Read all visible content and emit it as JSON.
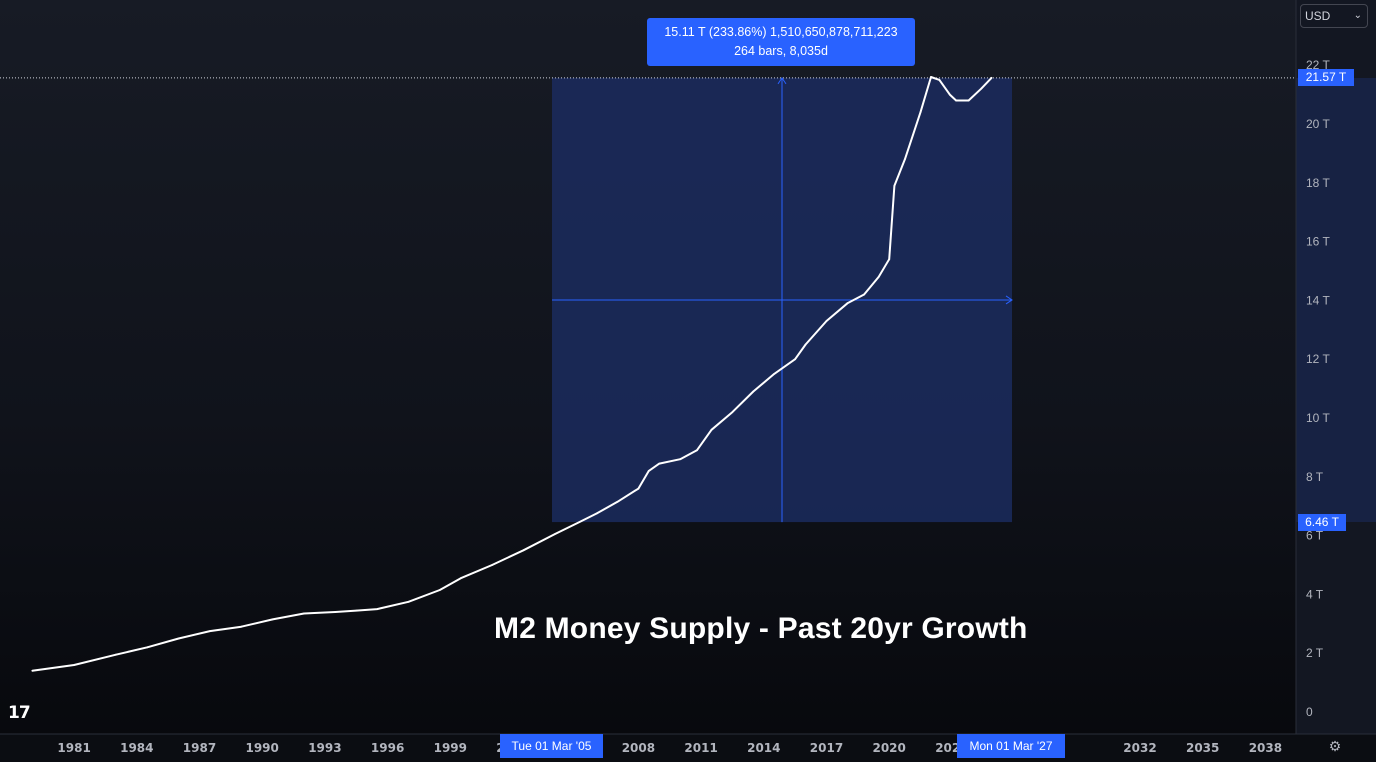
{
  "chart_data": {
    "type": "line",
    "title": "M2 Money Supply - Past 20yr Growth",
    "currency": "USD",
    "x_tick_labels": [
      "1981",
      "1984",
      "1987",
      "1990",
      "1993",
      "1996",
      "1999",
      "2002",
      "2008",
      "2011",
      "2014",
      "2017",
      "2020",
      "2023",
      "2032",
      "2035",
      "2038"
    ],
    "y_tick_labels": [
      "22 T",
      "20 T",
      "18 T",
      "16 T",
      "14 T",
      "12 T",
      "10 T",
      "8 T",
      "6 T",
      "4 T",
      "2 T",
      "0"
    ],
    "ylim": [
      0,
      22
    ],
    "series": [
      {
        "color": "#ffffff",
        "points": [
          [
            1979.0,
            1.4
          ],
          [
            1981.0,
            1.6
          ],
          [
            1983.0,
            1.95
          ],
          [
            1984.5,
            2.2
          ],
          [
            1986.0,
            2.5
          ],
          [
            1987.5,
            2.75
          ],
          [
            1989.0,
            2.9
          ],
          [
            1990.5,
            3.15
          ],
          [
            1992.0,
            3.35
          ],
          [
            1993.5,
            3.4
          ],
          [
            1994.5,
            3.45
          ],
          [
            1995.5,
            3.5
          ],
          [
            1997.0,
            3.75
          ],
          [
            1998.5,
            4.15
          ],
          [
            1999.5,
            4.55
          ],
          [
            2001.0,
            5.0
          ],
          [
            2002.5,
            5.5
          ],
          [
            2004.0,
            6.05
          ],
          [
            2005.17,
            6.46
          ],
          [
            2006.0,
            6.75
          ],
          [
            2007.0,
            7.15
          ],
          [
            2008.0,
            7.6
          ],
          [
            2008.5,
            8.2
          ],
          [
            2009.0,
            8.45
          ],
          [
            2010.0,
            8.6
          ],
          [
            2010.8,
            8.9
          ],
          [
            2011.5,
            9.6
          ],
          [
            2012.5,
            10.2
          ],
          [
            2013.5,
            10.9
          ],
          [
            2014.5,
            11.5
          ],
          [
            2015.5,
            12.0
          ],
          [
            2016.0,
            12.5
          ],
          [
            2017.0,
            13.3
          ],
          [
            2018.0,
            13.9
          ],
          [
            2018.8,
            14.2
          ],
          [
            2019.5,
            14.8
          ],
          [
            2020.0,
            15.4
          ],
          [
            2020.25,
            17.9
          ],
          [
            2020.75,
            18.8
          ],
          [
            2021.5,
            20.4
          ],
          [
            2022.0,
            21.6
          ],
          [
            2022.4,
            21.5
          ],
          [
            2022.9,
            21.0
          ],
          [
            2023.2,
            20.8
          ],
          [
            2023.8,
            20.8
          ],
          [
            2024.4,
            21.2
          ],
          [
            2024.9,
            21.57
          ]
        ]
      }
    ],
    "measurement": {
      "start_label": "Tue 01 Mar '05",
      "end_label": "Mon 01 Mar '27",
      "start_value": 6.46,
      "end_value": 21.57,
      "start_price_label": "6.46 T",
      "end_price_label": "21.57 T",
      "change_line": "15.11 T (233.86%) 1,510,650,878,711,223",
      "range_line": "264 bars, 8,035d"
    }
  },
  "ui": {
    "currency_label": "USD",
    "logo_text": "17",
    "settings_icon": "gear-icon",
    "colors": {
      "accent": "#2962ff",
      "zone": "#1b2b5e",
      "line": "#ffffff",
      "axis_text": "#b2b5be"
    }
  }
}
